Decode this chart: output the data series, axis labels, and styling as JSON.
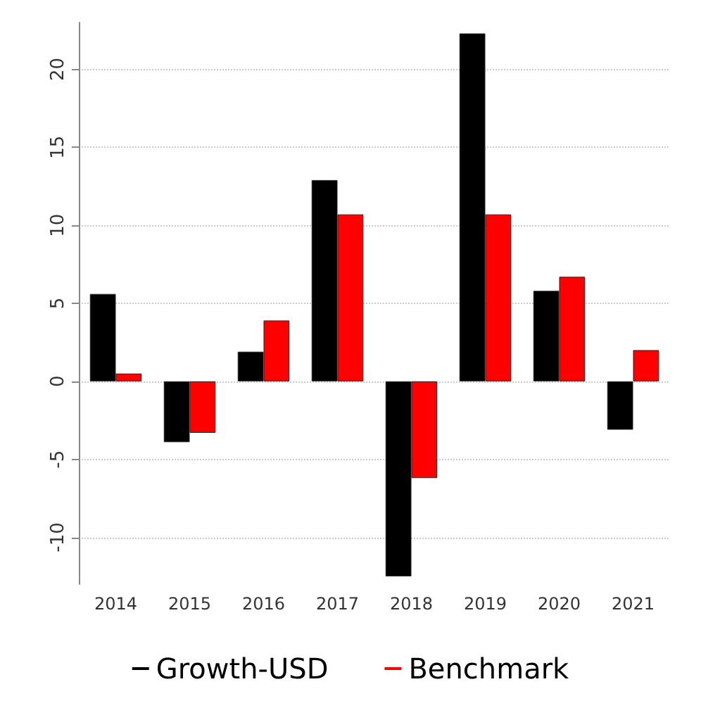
{
  "chart_data": {
    "type": "bar",
    "categories": [
      "2014",
      "2015",
      "2016",
      "2017",
      "2018",
      "2019",
      "2020",
      "2021"
    ],
    "series": [
      {
        "name": "Growth-USD",
        "color": "#000000",
        "values": [
          5.6,
          -3.9,
          1.9,
          12.9,
          -12.5,
          22.3,
          5.8,
          -3.1
        ]
      },
      {
        "name": "Benchmark",
        "color": "#ff0000",
        "values": [
          0.5,
          -3.3,
          3.9,
          10.7,
          -6.2,
          10.7,
          6.7,
          2.0
        ]
      }
    ],
    "ylim": [
      -13,
      23
    ],
    "yticks": [
      -10,
      -5,
      0,
      5,
      10,
      15,
      20
    ],
    "grid": "y",
    "legend": "bottom"
  }
}
